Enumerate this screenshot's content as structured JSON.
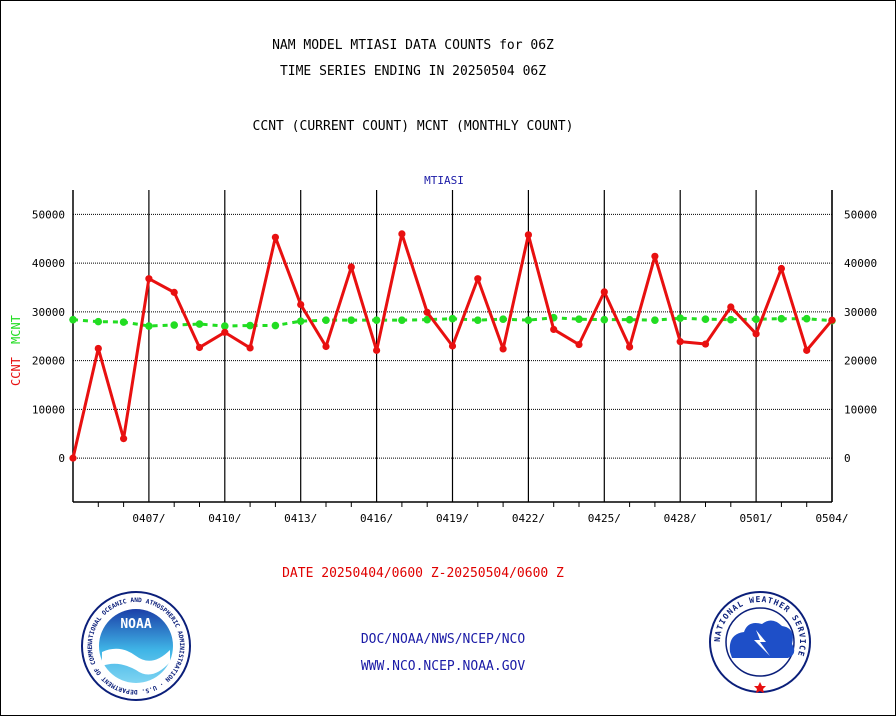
{
  "header": {
    "title_line1": "NAM MODEL MTIASI DATA COUNTS for 06Z",
    "title_line2": "TIME SERIES ENDING IN 20250504 06Z",
    "legend_line": "CCNT (CURRENT COUNT) MCNT (MONTHLY COUNT)"
  },
  "footer": {
    "date_range": "DATE 20250404/0600 Z-20250504/0600 Z",
    "org_line": "DOC/NOAA/NWS/NCEP/NCO",
    "url_line": "WWW.NCO.NCEP.NOAA.GOV",
    "noaa_logo_text": "NOAA",
    "noaa_ring_text": "NATIONAL OCEANIC AND ATMOSPHERIC ADMINISTRATION · U.S. DEPARTMENT OF COMMERCE",
    "nws_ring_text": "NATIONAL WEATHER SERVICE"
  },
  "colors": {
    "ccnt": "#e81010",
    "mcnt": "#22dd22",
    "panel_title": "#1a1aa6",
    "text": "#000000"
  },
  "chart_data": {
    "type": "line",
    "title": "MTIASI",
    "ylabel_ccnt": "CCNT",
    "ylabel_mcnt": "MCNT",
    "ylim": [
      -9000,
      55000
    ],
    "y_ticks": [
      0,
      10000,
      20000,
      30000,
      40000,
      50000
    ],
    "x_start_day": 0,
    "x_end_day": 30,
    "x_tick_labels": [
      "0407/",
      "0410/",
      "0413/",
      "0416/",
      "0419/",
      "0422/",
      "0425/",
      "0428/",
      "0501/",
      "0504/"
    ],
    "x_tick_days": [
      3,
      6,
      9,
      12,
      15,
      18,
      21,
      24,
      27,
      30
    ],
    "grid": true,
    "series": [
      {
        "name": "CCNT",
        "x": [
          0,
          1,
          2,
          3,
          4,
          5,
          6,
          7,
          8,
          9,
          10,
          11,
          12,
          13,
          14,
          15,
          16,
          17,
          18,
          19,
          20,
          21,
          22,
          23,
          24,
          25,
          26,
          27,
          28,
          29,
          30
        ],
        "values": [
          0,
          22500,
          4000,
          36800,
          34000,
          22700,
          25800,
          22600,
          45300,
          31500,
          22900,
          39200,
          22100,
          46000,
          29900,
          23000,
          36800,
          22400,
          45800,
          26400,
          23300,
          34100,
          22800,
          41400,
          23900,
          23400,
          31000,
          25500,
          38900,
          22100,
          28300
        ]
      },
      {
        "name": "MCNT",
        "x": [
          0,
          1,
          2,
          3,
          4,
          5,
          6,
          7,
          8,
          9,
          10,
          11,
          12,
          13,
          14,
          15,
          16,
          17,
          18,
          19,
          20,
          21,
          22,
          23,
          24,
          25,
          26,
          27,
          28,
          29,
          30
        ],
        "values": [
          28400,
          28000,
          27900,
          27100,
          27300,
          27500,
          27100,
          27200,
          27200,
          28100,
          28300,
          28300,
          28300,
          28300,
          28400,
          28600,
          28300,
          28500,
          28300,
          28800,
          28500,
          28400,
          28400,
          28300,
          28700,
          28500,
          28400,
          28500,
          28600,
          28600,
          28200
        ]
      }
    ]
  }
}
